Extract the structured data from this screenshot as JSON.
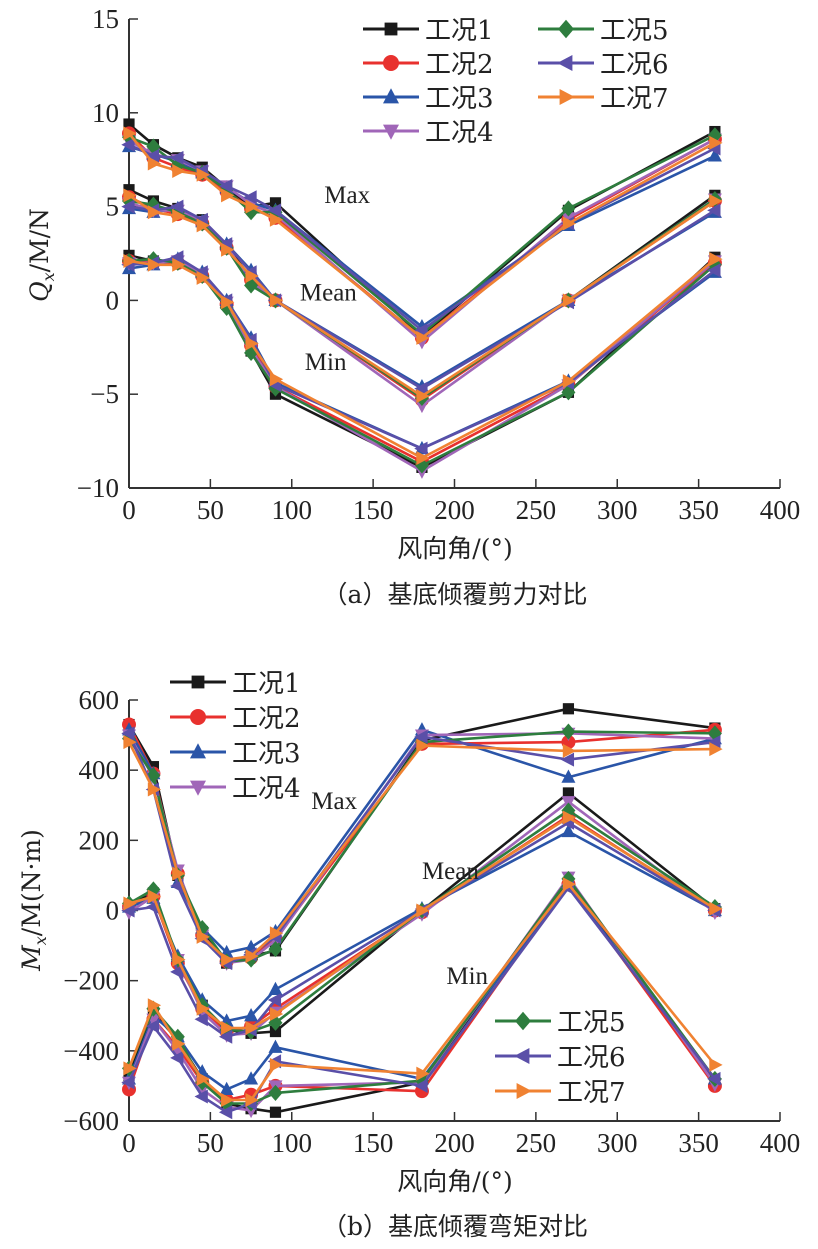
{
  "chart_data": [
    {
      "type": "line",
      "panel": "a",
      "caption": "（a）基底倾覆剪力对比",
      "xlabel": "风向角/(°)",
      "ylabel_main": "Q",
      "ylabel_sub": "x",
      "ylabel_rest": "/M/N",
      "xlim": [
        0,
        400
      ],
      "ylim": [
        -10,
        15
      ],
      "xticks": [
        0,
        50,
        100,
        150,
        200,
        250,
        300,
        350,
        400
      ],
      "yticks": [
        -10,
        -5,
        0,
        5,
        10,
        15
      ],
      "ytick_labels": [
        "−10",
        "−5",
        "0",
        "5",
        "10",
        "15"
      ],
      "grid": false,
      "legend_placement": "top-right",
      "x": [
        0,
        15,
        30,
        45,
        60,
        75,
        90,
        180,
        270,
        360
      ],
      "annotations": [
        {
          "text": "Max",
          "x": 120,
          "y": 5.2
        },
        {
          "text": "Mean",
          "x": 105,
          "y": 0
        },
        {
          "text": "Min",
          "x": 108,
          "y": -3.7
        }
      ],
      "series": [
        {
          "name": "工况1",
          "color": "#1a1a1a",
          "marker": "square",
          "max": [
            9.4,
            8.3,
            7.6,
            7.1,
            6.0,
            5.0,
            5.2,
            -1.9,
            4.8,
            9.0
          ],
          "mean": [
            5.9,
            5.3,
            4.9,
            4.3,
            2.9,
            1.2,
            0.0,
            -5.2,
            0.0,
            5.6
          ],
          "min": [
            2.4,
            2.1,
            2.1,
            1.4,
            -0.2,
            -2.7,
            -5.0,
            -8.9,
            -4.9,
            2.3
          ]
        },
        {
          "name": "工况2",
          "color": "#e8312e",
          "marker": "circle",
          "max": [
            8.9,
            7.6,
            7.1,
            6.7,
            5.8,
            4.9,
            4.4,
            -2.0,
            4.3,
            8.6
          ],
          "mean": [
            5.5,
            4.9,
            4.6,
            4.1,
            2.8,
            1.1,
            0.0,
            -5.3,
            0.0,
            5.3
          ],
          "min": [
            2.1,
            2.0,
            2.0,
            1.3,
            -0.2,
            -2.4,
            -4.6,
            -8.6,
            -4.5,
            2.0
          ]
        },
        {
          "name": "工况3",
          "color": "#2a55a8",
          "marker": "triangle-up",
          "max": [
            8.2,
            7.8,
            7.4,
            6.8,
            6.0,
            5.2,
            4.8,
            -1.4,
            4.0,
            7.7
          ],
          "mean": [
            4.9,
            4.7,
            4.9,
            4.2,
            3.0,
            1.6,
            0.0,
            -4.6,
            0.0,
            4.7
          ],
          "min": [
            1.7,
            1.9,
            2.2,
            1.5,
            0.0,
            -2.0,
            -4.4,
            -7.9,
            -4.3,
            1.5
          ]
        },
        {
          "name": "工况4",
          "color": "#a066b8",
          "marker": "triangle-down",
          "max": [
            8.5,
            7.8,
            7.5,
            6.9,
            6.1,
            5.1,
            4.6,
            -2.2,
            4.4,
            8.6
          ],
          "mean": [
            5.2,
            4.8,
            4.8,
            4.2,
            2.9,
            1.0,
            0.0,
            -5.6,
            0.0,
            5.4
          ],
          "min": [
            2.0,
            2.0,
            2.1,
            1.4,
            -0.1,
            -2.6,
            -4.6,
            -9.1,
            -4.5,
            2.1
          ]
        },
        {
          "name": "工况5",
          "color": "#2e7d3e",
          "marker": "diamond",
          "max": [
            8.7,
            8.2,
            7.2,
            6.8,
            5.9,
            4.7,
            4.7,
            -1.8,
            4.9,
            8.8
          ],
          "mean": [
            5.3,
            5.1,
            4.7,
            4.1,
            2.8,
            0.8,
            0.0,
            -5.2,
            0.0,
            5.4
          ],
          "min": [
            2.1,
            2.2,
            2.0,
            1.3,
            -0.4,
            -2.8,
            -4.7,
            -8.8,
            -4.9,
            1.9
          ]
        },
        {
          "name": "工况6",
          "color": "#5a4fa8",
          "marker": "triangle-left",
          "max": [
            8.3,
            7.7,
            7.6,
            6.9,
            6.1,
            5.5,
            4.8,
            -1.6,
            4.1,
            8.1
          ],
          "mean": [
            5.0,
            4.8,
            5.0,
            4.3,
            3.0,
            1.5,
            0.0,
            -4.7,
            -0.1,
            4.8
          ],
          "min": [
            1.9,
            2.0,
            2.3,
            1.5,
            0.0,
            -2.1,
            -4.5,
            -7.9,
            -4.4,
            1.6
          ]
        },
        {
          "name": "工况7",
          "color": "#f08232",
          "marker": "triangle-right",
          "max": [
            8.9,
            7.3,
            6.9,
            6.7,
            5.6,
            5.0,
            4.3,
            -2.0,
            4.1,
            8.4
          ],
          "mean": [
            5.6,
            4.7,
            4.5,
            4.0,
            2.7,
            1.3,
            0.0,
            -5.1,
            0.0,
            5.3
          ],
          "min": [
            2.1,
            1.9,
            1.9,
            1.2,
            -0.1,
            -2.3,
            -4.2,
            -8.4,
            -4.3,
            2.2
          ]
        }
      ]
    },
    {
      "type": "line",
      "panel": "b",
      "caption": "（b）基底倾覆弯矩对比",
      "xlabel": "风向角/(°)",
      "ylabel_main": "M",
      "ylabel_sub": "x",
      "ylabel_rest": "/M(N·m)",
      "xlim": [
        0,
        400
      ],
      "ylim": [
        -600,
        600
      ],
      "xticks": [
        0,
        50,
        100,
        150,
        200,
        250,
        300,
        350,
        400
      ],
      "yticks": [
        -600,
        -400,
        -200,
        0,
        200,
        400,
        600
      ],
      "ytick_labels": [
        "−600",
        "−400",
        "−200",
        "0",
        "200",
        "400",
        "600"
      ],
      "grid": false,
      "legend_placement": "top-left (工况1–4) and bottom-right (工况5–7)",
      "x": [
        0,
        15,
        30,
        45,
        60,
        75,
        90,
        180,
        270,
        360
      ],
      "annotations": [
        {
          "text": "Max",
          "x": 112,
          "y": 290
        },
        {
          "text": "Mean",
          "x": 180,
          "y": 90
        },
        {
          "text": "Min",
          "x": 195,
          "y": -210
        }
      ],
      "series": [
        {
          "name": "工况1",
          "color": "#1a1a1a",
          "marker": "square",
          "max": [
            530,
            410,
            100,
            -60,
            -150,
            -130,
            -115,
            485,
            575,
            520
          ],
          "mean": [
            15,
            50,
            -145,
            -270,
            -340,
            -350,
            -345,
            0,
            335,
            5
          ],
          "min": [
            -470,
            -290,
            -370,
            -480,
            -550,
            -565,
            -575,
            -490,
            80,
            -490
          ]
        },
        {
          "name": "工况2",
          "color": "#e8312e",
          "marker": "circle",
          "max": [
            530,
            390,
            105,
            -70,
            -145,
            -135,
            -80,
            475,
            480,
            515
          ],
          "mean": [
            10,
            40,
            -150,
            -280,
            -345,
            -330,
            -280,
            -5,
            270,
            0
          ],
          "min": [
            -510,
            -310,
            -390,
            -490,
            -540,
            -525,
            -500,
            -515,
            75,
            -500
          ]
        },
        {
          "name": "工况3",
          "color": "#2a55a8",
          "marker": "triangle-up",
          "max": [
            515,
            390,
            80,
            -50,
            -120,
            -105,
            -60,
            515,
            380,
            490
          ],
          "mean": [
            10,
            35,
            -130,
            -255,
            -315,
            -300,
            -225,
            5,
            225,
            0
          ],
          "min": [
            -480,
            -300,
            -360,
            -460,
            -510,
            -480,
            -390,
            -480,
            70,
            -480
          ]
        },
        {
          "name": "工况4",
          "color": "#a066b8",
          "marker": "triangle-down",
          "max": [
            500,
            380,
            115,
            -70,
            -150,
            -140,
            -85,
            500,
            505,
            490
          ],
          "mean": [
            -5,
            40,
            -140,
            -290,
            -355,
            -350,
            -290,
            -10,
            310,
            -5
          ],
          "min": [
            -490,
            -310,
            -400,
            -510,
            -560,
            -570,
            -500,
            -490,
            95,
            -495
          ]
        },
        {
          "name": "工况5",
          "color": "#2e7d3e",
          "marker": "diamond",
          "max": [
            490,
            385,
            100,
            -50,
            -145,
            -140,
            -110,
            480,
            510,
            505
          ],
          "mean": [
            20,
            60,
            -140,
            -270,
            -340,
            -345,
            -320,
            0,
            285,
            10
          ],
          "min": [
            -450,
            -280,
            -360,
            -490,
            -550,
            -550,
            -520,
            -485,
            90,
            -480
          ]
        },
        {
          "name": "工况6",
          "color": "#5a4fa8",
          "marker": "triangle-left",
          "max": [
            505,
            345,
            70,
            -80,
            -150,
            -125,
            -75,
            495,
            430,
            480
          ],
          "mean": [
            0,
            10,
            -175,
            -310,
            -360,
            -340,
            -255,
            0,
            250,
            0
          ],
          "min": [
            -490,
            -330,
            -420,
            -530,
            -575,
            -550,
            -430,
            -500,
            65,
            -480
          ]
        },
        {
          "name": "工况7",
          "color": "#f08232",
          "marker": "triangle-right",
          "max": [
            480,
            345,
            105,
            -75,
            -140,
            -130,
            -65,
            470,
            455,
            460
          ],
          "mean": [
            20,
            40,
            -140,
            -280,
            -335,
            -335,
            -295,
            0,
            265,
            5
          ],
          "min": [
            -450,
            -270,
            -380,
            -480,
            -540,
            -540,
            -440,
            -465,
            75,
            -440
          ]
        }
      ]
    }
  ]
}
